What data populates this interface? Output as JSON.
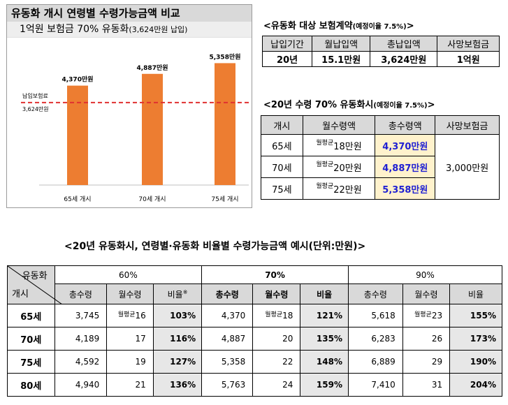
{
  "left_panel": {
    "title": "유동화 개시 연령별 수령가능금액 비교",
    "subtitle_main": "1억원 보험금 70% 유동화",
    "subtitle_paren": "(3,624만원 납입)"
  },
  "chart_data": {
    "type": "bar",
    "categories": [
      "65세 개시",
      "70세 개시",
      "75세 개시"
    ],
    "values": [
      4370,
      4887,
      5358
    ],
    "value_labels": [
      "4,370만원",
      "4,887만원",
      "5,358만원"
    ],
    "bar_color": "#ed7d31",
    "reference_line": {
      "value": 3624,
      "label_line1": "납입보험료",
      "label_line2": "3,624만원",
      "color": "#e03030",
      "style": "dashed"
    },
    "ylim": [
      0,
      6200
    ],
    "grid": false
  },
  "contract": {
    "title": "<유동화 대상 보험계약",
    "title_note": "(예정이율 7.5%)",
    "title_end": ">",
    "headers": [
      "납입기간",
      "월납입액",
      "총납입액",
      "사망보험금"
    ],
    "values": [
      "20년",
      "15.1만원",
      "3,624만원",
      "1억원"
    ]
  },
  "conversion": {
    "title": "<20년 수령 70% 유동화시",
    "title_note": "(예정이율 7.5%)",
    "title_end": ">",
    "headers": [
      "개시",
      "월수령액",
      "총수령액",
      "사망보험금"
    ],
    "monthly_prefix": "월평균",
    "rows": [
      {
        "age": "65세",
        "monthly": "18만원",
        "total": "4,370만원"
      },
      {
        "age": "70세",
        "monthly": "20만원",
        "total": "4,887만원"
      },
      {
        "age": "75세",
        "monthly": "22만원",
        "total": "5,358만원"
      }
    ],
    "death_benefit": "3,000만원"
  },
  "bottom": {
    "title": "<20년 유동화시, 연령별·유동화 비율별 수령가능금액 예시(단위:만원)>",
    "corner_top": "유동화",
    "corner_bottom": "개시",
    "groups": [
      "60%",
      "70%",
      "90%"
    ],
    "sub_headers": [
      "총수령",
      "월수령",
      "비율",
      "총수령",
      "월수령",
      "비율",
      "총수령",
      "월수령",
      "비율"
    ],
    "ratio_footnote_mark": "※",
    "monthly_prefix": "월평균",
    "rows": [
      {
        "age": "65세",
        "cells": [
          "3,745",
          "16",
          "103%",
          "4,370",
          "18",
          "121%",
          "5,618",
          "23",
          "155%"
        ]
      },
      {
        "age": "70세",
        "cells": [
          "4,189",
          "17",
          "116%",
          "4,887",
          "20",
          "135%",
          "6,283",
          "26",
          "173%"
        ]
      },
      {
        "age": "75세",
        "cells": [
          "4,592",
          "19",
          "127%",
          "5,358",
          "22",
          "148%",
          "6,889",
          "29",
          "190%"
        ]
      },
      {
        "age": "80세",
        "cells": [
          "4,940",
          "21",
          "136%",
          "5,763",
          "24",
          "159%",
          "7,410",
          "31",
          "204%"
        ]
      }
    ]
  }
}
